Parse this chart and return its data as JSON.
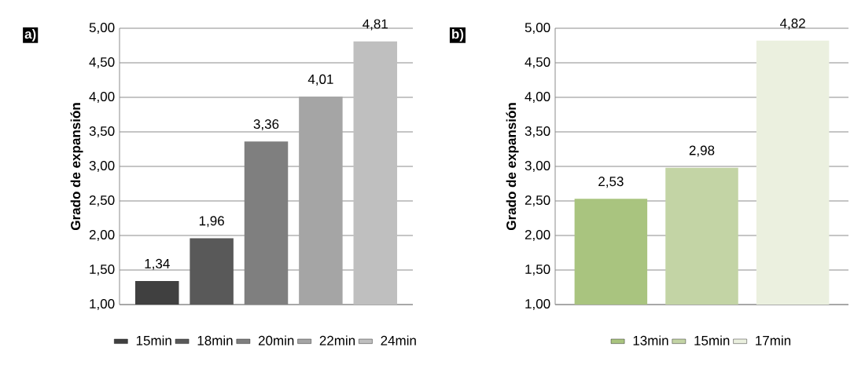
{
  "chart_data": [
    {
      "type": "bar",
      "title": "a)",
      "ylabel": "Grado de expansión",
      "categories": [
        null
      ],
      "series": [
        {
          "name": "15min",
          "color": "#404040",
          "values": [
            1.34
          ],
          "value_labels": [
            "1,34"
          ]
        },
        {
          "name": "18min",
          "color": "#595959",
          "values": [
            1.96
          ],
          "value_labels": [
            "1,96"
          ]
        },
        {
          "name": "20min",
          "color": "#7f7f7f",
          "values": [
            3.36
          ],
          "value_labels": [
            "3,36"
          ]
        },
        {
          "name": "22min",
          "color": "#a5a5a5",
          "values": [
            4.01
          ],
          "value_labels": [
            "4,01"
          ]
        },
        {
          "name": "24min",
          "color": "#bfbfbf",
          "values": [
            4.81
          ],
          "value_labels": [
            "4,81"
          ]
        }
      ],
      "ylim": [
        1,
        5
      ],
      "yticks": [
        {
          "value": 1,
          "label": "1,00"
        },
        {
          "value": 1.5,
          "label": "1,50"
        },
        {
          "value": 2,
          "label": "2,00"
        },
        {
          "value": 2.5,
          "label": "2,50"
        },
        {
          "value": 3,
          "label": "3,00"
        },
        {
          "value": 3.5,
          "label": "3,50"
        },
        {
          "value": 4,
          "label": "4,00"
        },
        {
          "value": 4.5,
          "label": "4,50"
        },
        {
          "value": 5,
          "label": "5,00"
        }
      ],
      "grid": "y",
      "legend": "bottom"
    },
    {
      "type": "bar",
      "title": "b)",
      "ylabel": "Grado de expansión",
      "categories": [
        null
      ],
      "series": [
        {
          "name": "13min",
          "color": "#a9c47f",
          "values": [
            2.53
          ],
          "value_labels": [
            "2,53"
          ]
        },
        {
          "name": "15min",
          "color": "#c3d4a5",
          "values": [
            2.98
          ],
          "value_labels": [
            "2,98"
          ]
        },
        {
          "name": "17min",
          "color": "#ebf0df",
          "values": [
            4.82
          ],
          "value_labels": [
            "4,82"
          ]
        }
      ],
      "ylim": [
        1,
        5
      ],
      "yticks": [
        {
          "value": 1,
          "label": "1,00"
        },
        {
          "value": 1.5,
          "label": "1,50"
        },
        {
          "value": 2,
          "label": "2,00"
        },
        {
          "value": 2.5,
          "label": "2,50"
        },
        {
          "value": 3,
          "label": "3,00"
        },
        {
          "value": 3.5,
          "label": "3,50"
        },
        {
          "value": 4,
          "label": "4,00"
        },
        {
          "value": 4.5,
          "label": "4,50"
        },
        {
          "value": 5,
          "label": "5,00"
        }
      ],
      "grid": "y",
      "legend": "bottom"
    }
  ]
}
